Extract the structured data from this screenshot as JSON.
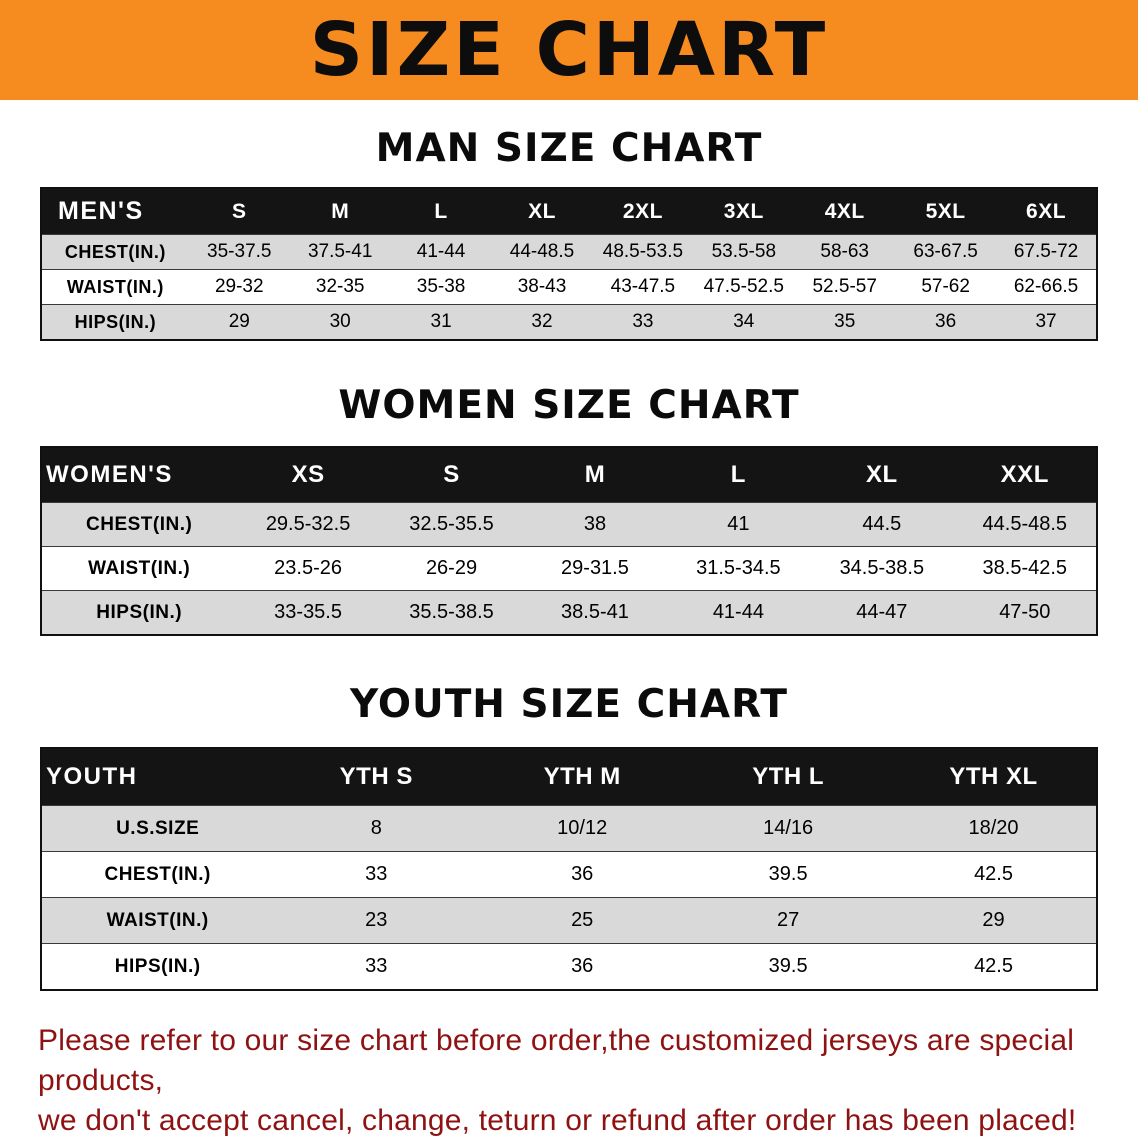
{
  "banner": {
    "title": "SIZE CHART"
  },
  "colors": {
    "banner_bg": "#f68b1f",
    "table_header_bg": "#141414",
    "row_stripe": "#d9d9d9",
    "note_text": "#8e1212"
  },
  "sections": {
    "men": {
      "heading": "MAN SIZE CHART",
      "table": {
        "header": [
          "MEN'S",
          "S",
          "M",
          "L",
          "XL",
          "2XL",
          "3XL",
          "4XL",
          "5XL",
          "6XL"
        ],
        "rows": [
          [
            "CHEST(IN.)",
            "35-37.5",
            "37.5-41",
            "41-44",
            "44-48.5",
            "48.5-53.5",
            "53.5-58",
            "58-63",
            "63-67.5",
            "67.5-72"
          ],
          [
            "WAIST(IN.)",
            "29-32",
            "32-35",
            "35-38",
            "38-43",
            "43-47.5",
            "47.5-52.5",
            "52.5-57",
            "57-62",
            "62-66.5"
          ],
          [
            "HIPS(IN.)",
            "29",
            "30",
            "31",
            "32",
            "33",
            "34",
            "35",
            "36",
            "37"
          ]
        ]
      }
    },
    "women": {
      "heading": "WOMEN SIZE CHART",
      "table": {
        "header": [
          "WOMEN'S",
          "XS",
          "S",
          "M",
          "L",
          "XL",
          "XXL"
        ],
        "rows": [
          [
            "CHEST(IN.)",
            "29.5-32.5",
            "32.5-35.5",
            "38",
            "41",
            "44.5",
            "44.5-48.5"
          ],
          [
            "WAIST(IN.)",
            "23.5-26",
            "26-29",
            "29-31.5",
            "31.5-34.5",
            "34.5-38.5",
            "38.5-42.5"
          ],
          [
            "HIPS(IN.)",
            "33-35.5",
            "35.5-38.5",
            "38.5-41",
            "41-44",
            "44-47",
            "47-50"
          ]
        ]
      }
    },
    "youth": {
      "heading": "YOUTH SIZE CHART",
      "table": {
        "header": [
          "YOUTH",
          "YTH S",
          "YTH M",
          "YTH L",
          "YTH XL"
        ],
        "rows": [
          [
            "U.S.SIZE",
            "8",
            "10/12",
            "14/16",
            "18/20"
          ],
          [
            "CHEST(IN.)",
            "33",
            "36",
            "39.5",
            "42.5"
          ],
          [
            "WAIST(IN.)",
            "23",
            "25",
            "27",
            "29"
          ],
          [
            "HIPS(IN.)",
            "33",
            "36",
            "39.5",
            "42.5"
          ]
        ]
      }
    }
  },
  "footer": {
    "line1": "Please refer to our size chart before order,the customized jerseys are special products,",
    "line2": "we don't accept cancel, change, teturn or refund after order has been placed!"
  }
}
